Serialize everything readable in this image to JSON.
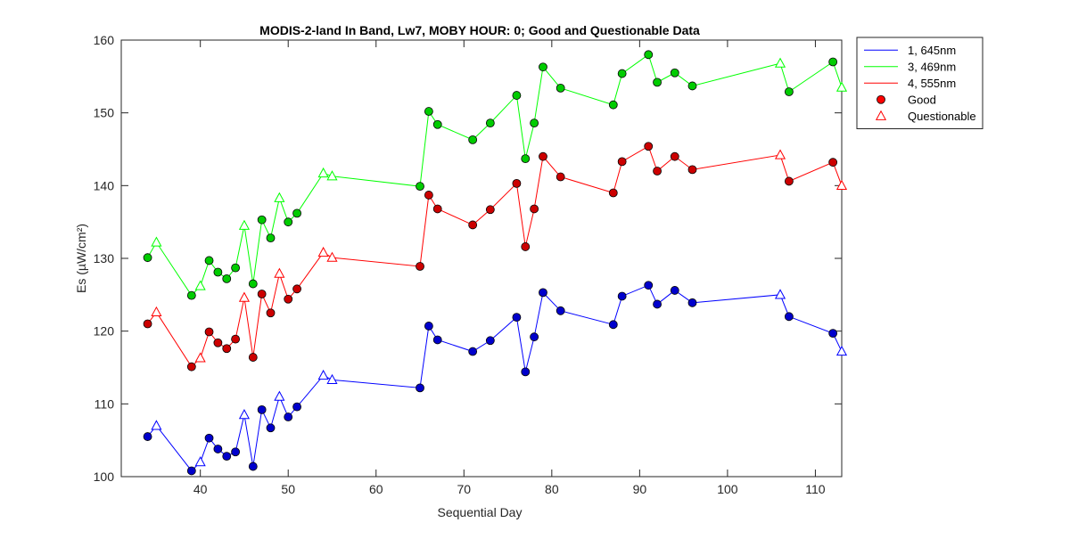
{
  "chart_data": {
    "type": "line",
    "title": "MODIS-2-land In Band,  Lw7, MOBY HOUR: 0;  Good and Questionable Data",
    "xlabel": "Sequential Day",
    "ylabel": "Es (µW/cm²)",
    "xlim": [
      31,
      113
    ],
    "ylim": [
      100,
      160
    ],
    "xticks": [
      40,
      50,
      60,
      70,
      80,
      90,
      100,
      110
    ],
    "yticks": [
      100,
      110,
      120,
      130,
      140,
      150,
      160
    ],
    "grid": false,
    "legend_position": "outside-top-right",
    "legend": {
      "entries": [
        {
          "label": "1, 645nm",
          "kind": "line",
          "color": "#0000ff"
        },
        {
          "label": "3, 469nm",
          "kind": "line",
          "color": "#00ff00"
        },
        {
          "label": "4, 555nm",
          "kind": "line",
          "color": "#ff0000"
        },
        {
          "label": "Good",
          "kind": "circle",
          "color": "#ff0000"
        },
        {
          "label": "Questionable",
          "kind": "triangle",
          "color": "#ff0000"
        }
      ]
    },
    "series": [
      {
        "name": "1, 645nm",
        "line_color": "#0000ff",
        "marker_fill": "#0000cc",
        "points": [
          [
            34,
            105.5,
            "good"
          ],
          [
            35,
            107.0,
            "questionable"
          ],
          [
            39,
            100.8,
            "good"
          ],
          [
            40,
            102.0,
            "questionable"
          ],
          [
            41,
            105.3,
            "good"
          ],
          [
            42,
            103.8,
            "good"
          ],
          [
            43,
            102.8,
            "good"
          ],
          [
            44,
            103.4,
            "good"
          ],
          [
            45,
            108.5,
            "questionable"
          ],
          [
            46,
            101.4,
            "good"
          ],
          [
            47,
            109.2,
            "good"
          ],
          [
            48,
            106.7,
            "good"
          ],
          [
            49,
            111.0,
            "questionable"
          ],
          [
            50,
            108.2,
            "good"
          ],
          [
            51,
            109.6,
            "good"
          ],
          [
            54,
            113.9,
            "questionable"
          ],
          [
            55,
            113.3,
            "questionable"
          ],
          [
            65,
            112.2,
            "good"
          ],
          [
            66,
            120.7,
            "good"
          ],
          [
            67,
            118.8,
            "good"
          ],
          [
            71,
            117.2,
            "good"
          ],
          [
            73,
            118.7,
            "good"
          ],
          [
            76,
            121.9,
            "good"
          ],
          [
            77,
            114.4,
            "good"
          ],
          [
            78,
            119.2,
            "good"
          ],
          [
            79,
            125.3,
            "good"
          ],
          [
            81,
            122.8,
            "good"
          ],
          [
            87,
            120.9,
            "good"
          ],
          [
            88,
            124.8,
            "good"
          ],
          [
            91,
            126.3,
            "good"
          ],
          [
            92,
            123.7,
            "good"
          ],
          [
            94,
            125.6,
            "good"
          ],
          [
            96,
            123.9,
            "good"
          ],
          [
            106,
            125.0,
            "questionable"
          ],
          [
            107,
            122.0,
            "good"
          ],
          [
            112,
            119.7,
            "good"
          ],
          [
            113,
            117.2,
            "questionable"
          ]
        ]
      },
      {
        "name": "3, 469nm",
        "line_color": "#00ff00",
        "marker_fill": "#00cc00",
        "points": [
          [
            34,
            130.1,
            "good"
          ],
          [
            35,
            132.2,
            "questionable"
          ],
          [
            39,
            124.9,
            "good"
          ],
          [
            40,
            126.2,
            "questionable"
          ],
          [
            41,
            129.7,
            "good"
          ],
          [
            42,
            128.1,
            "good"
          ],
          [
            43,
            127.2,
            "good"
          ],
          [
            44,
            128.7,
            "good"
          ],
          [
            45,
            134.5,
            "questionable"
          ],
          [
            46,
            126.5,
            "good"
          ],
          [
            47,
            135.3,
            "good"
          ],
          [
            48,
            132.8,
            "good"
          ],
          [
            49,
            138.3,
            "questionable"
          ],
          [
            50,
            135.0,
            "good"
          ],
          [
            51,
            136.2,
            "good"
          ],
          [
            54,
            141.7,
            "questionable"
          ],
          [
            55,
            141.3,
            "questionable"
          ],
          [
            65,
            139.9,
            "good"
          ],
          [
            66,
            150.2,
            "good"
          ],
          [
            67,
            148.4,
            "good"
          ],
          [
            71,
            146.3,
            "good"
          ],
          [
            73,
            148.6,
            "good"
          ],
          [
            76,
            152.4,
            "good"
          ],
          [
            77,
            143.7,
            "good"
          ],
          [
            78,
            148.6,
            "good"
          ],
          [
            79,
            156.3,
            "good"
          ],
          [
            81,
            153.4,
            "good"
          ],
          [
            87,
            151.1,
            "good"
          ],
          [
            88,
            155.4,
            "good"
          ],
          [
            91,
            158.0,
            "good"
          ],
          [
            92,
            154.2,
            "good"
          ],
          [
            94,
            155.5,
            "good"
          ],
          [
            96,
            153.7,
            "good"
          ],
          [
            106,
            156.8,
            "questionable"
          ],
          [
            107,
            152.9,
            "good"
          ],
          [
            112,
            157.0,
            "good"
          ],
          [
            113,
            153.5,
            "questionable"
          ]
        ]
      },
      {
        "name": "4, 555nm",
        "line_color": "#ff0000",
        "marker_fill": "#cc0000",
        "points": [
          [
            34,
            121.0,
            "good"
          ],
          [
            35,
            122.6,
            "questionable"
          ],
          [
            39,
            115.1,
            "good"
          ],
          [
            40,
            116.3,
            "questionable"
          ],
          [
            41,
            119.9,
            "good"
          ],
          [
            42,
            118.4,
            "good"
          ],
          [
            43,
            117.6,
            "good"
          ],
          [
            44,
            118.9,
            "good"
          ],
          [
            45,
            124.6,
            "questionable"
          ],
          [
            46,
            116.4,
            "good"
          ],
          [
            47,
            125.1,
            "good"
          ],
          [
            48,
            122.5,
            "good"
          ],
          [
            49,
            127.9,
            "questionable"
          ],
          [
            50,
            124.4,
            "good"
          ],
          [
            51,
            125.8,
            "good"
          ],
          [
            54,
            130.8,
            "questionable"
          ],
          [
            55,
            130.1,
            "questionable"
          ],
          [
            65,
            128.9,
            "good"
          ],
          [
            66,
            138.7,
            "good"
          ],
          [
            67,
            136.8,
            "good"
          ],
          [
            71,
            134.6,
            "good"
          ],
          [
            73,
            136.7,
            "good"
          ],
          [
            76,
            140.3,
            "good"
          ],
          [
            77,
            131.6,
            "good"
          ],
          [
            78,
            136.8,
            "good"
          ],
          [
            79,
            144.0,
            "good"
          ],
          [
            81,
            141.2,
            "good"
          ],
          [
            87,
            139.0,
            "good"
          ],
          [
            88,
            143.3,
            "good"
          ],
          [
            91,
            145.4,
            "good"
          ],
          [
            92,
            142.0,
            "good"
          ],
          [
            94,
            144.0,
            "good"
          ],
          [
            96,
            142.2,
            "good"
          ],
          [
            106,
            144.2,
            "questionable"
          ],
          [
            107,
            140.6,
            "good"
          ],
          [
            112,
            143.2,
            "good"
          ],
          [
            113,
            140.0,
            "questionable"
          ]
        ]
      }
    ]
  }
}
